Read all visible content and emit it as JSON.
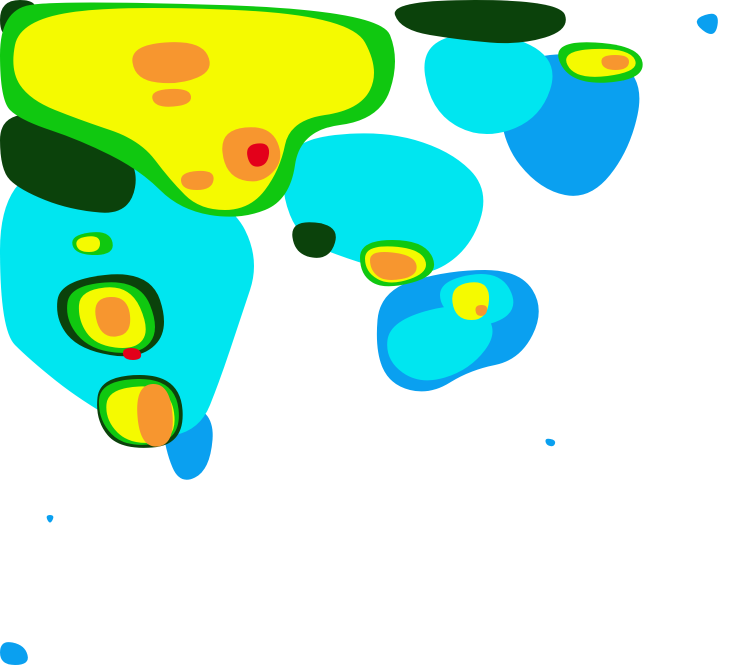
{
  "map": {
    "background": "#ffffff",
    "palette": {
      "light_blue": "#0aa0f0",
      "cyan": "#00e6f0",
      "dark_green": "#0b420b",
      "green": "#10c810",
      "yellow": "#f5fa00",
      "orange": "#f7962f",
      "red": "#e3001a"
    },
    "layers": [
      "light_blue",
      "cyan",
      "dark_green",
      "green",
      "yellow",
      "orange",
      "red"
    ]
  }
}
